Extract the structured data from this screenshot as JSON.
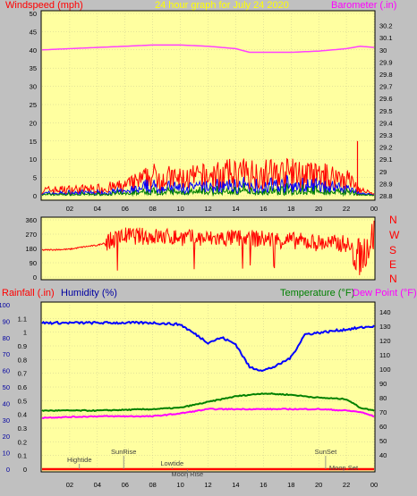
{
  "header": {
    "title": "24 hour graph for   July 24 2020",
    "left_label": "Windspeed (mph)",
    "right_label": "Barometer (.in)"
  },
  "direction_labels": [
    "N",
    "W",
    "S",
    "E",
    "N"
  ],
  "bottom_header": {
    "rain_label": "Rainfall (.in)",
    "humidity_label": "Humidity (%)",
    "temperature_label": "Temperature (°F)",
    "dewpoint_label": "Dew Point (°F)"
  },
  "events": [
    {
      "label": "Hightide",
      "x": 2.7
    },
    {
      "label": "SunRise",
      "x": 5.9
    },
    {
      "label": "Lowtide",
      "x": 9.4
    },
    {
      "label": "Moon Rise",
      "x": 10.5
    },
    {
      "label": "SunSet",
      "x": 20.5
    },
    {
      "label": "Moon Set",
      "x": 21.8
    }
  ],
  "chart_data": [
    {
      "type": "line",
      "name": "windspeed-barometer",
      "x_ticks": [
        "02",
        "04",
        "06",
        "08",
        "10",
        "12",
        "14",
        "16",
        "18",
        "20",
        "22",
        "00"
      ],
      "x_range": [
        0,
        24
      ],
      "ylim_left": [
        0,
        50
      ],
      "yticks_left": [
        0,
        5,
        10,
        15,
        20,
        25,
        30,
        35,
        40,
        45,
        50
      ],
      "ylim_right": [
        28.8,
        30.3
      ],
      "yticks_right": [
        "28.8",
        "28.9",
        "29",
        "29.1",
        "29.2",
        "29.3",
        "29.4",
        "29.5",
        "29.6",
        "29.7",
        "29.8",
        "29.9",
        "30",
        "30.1",
        "30.2"
      ],
      "barometer": {
        "x": [
          0,
          2,
          4,
          6,
          8,
          10,
          12,
          14,
          15,
          16,
          18,
          20,
          22,
          23,
          24
        ],
        "y": [
          30.0,
          30.01,
          30.02,
          30.03,
          30.04,
          30.04,
          30.03,
          30.01,
          29.98,
          29.98,
          29.98,
          29.99,
          30.01,
          30.03,
          30.02
        ]
      },
      "gust_profile": {
        "x": [
          0,
          4,
          6,
          8,
          10,
          12,
          14,
          16,
          18,
          20,
          22,
          23,
          24
        ],
        "y": [
          2,
          2.5,
          3.5,
          7,
          6,
          7,
          8,
          8,
          8,
          7,
          6.5,
          2,
          0.5
        ]
      },
      "wind_peak": {
        "x": 22.8,
        "y": 15
      }
    },
    {
      "type": "line",
      "name": "wind-direction",
      "ylim": [
        0,
        360
      ],
      "yticks": [
        0,
        90,
        180,
        270,
        360
      ],
      "x_range": [
        0,
        24
      ],
      "profile": {
        "x": [
          0,
          2,
          3,
          4,
          5,
          6,
          8,
          10,
          12,
          14,
          16,
          18,
          20,
          22,
          23,
          24
        ],
        "y": [
          170,
          175,
          190,
          200,
          230,
          260,
          255,
          250,
          240,
          245,
          240,
          230,
          215,
          210,
          120,
          270
        ]
      }
    },
    {
      "type": "line",
      "name": "rain-humidity-temperature-dewpoint",
      "x_ticks": [
        "02",
        "04",
        "06",
        "08",
        "10",
        "12",
        "14",
        "16",
        "18",
        "20",
        "22",
        "00"
      ],
      "x_range": [
        0,
        24
      ],
      "ylim_rain": [
        0,
        1.2
      ],
      "yticks_rain": [
        "0",
        "0.1",
        "0.2",
        "0.3",
        "0.4",
        "0.5",
        "0.6",
        "0.7",
        "0.8",
        "0.9",
        "1",
        "1.1"
      ],
      "ylim_humidity": [
        0,
        100
      ],
      "yticks_humidity": [
        0,
        10,
        20,
        30,
        40,
        50,
        60,
        70,
        80,
        90,
        100
      ],
      "ylim_temperature": [
        30,
        145
      ],
      "yticks_temperature": [
        40,
        50,
        60,
        70,
        80,
        90,
        100,
        110,
        120,
        130,
        140
      ],
      "series": [
        {
          "name": "Humidity",
          "color": "#0000ff",
          "axis": "humidity",
          "x": [
            0,
            4,
            8,
            10,
            12,
            13,
            14,
            15,
            16,
            17,
            18,
            19,
            20,
            21,
            22,
            23,
            24
          ],
          "y": [
            89,
            89,
            89,
            88,
            77,
            80,
            76,
            62,
            60,
            63,
            68,
            82,
            83,
            84,
            85,
            86,
            87
          ]
        },
        {
          "name": "Temperature",
          "color": "#008000",
          "axis": "temperature",
          "x": [
            0,
            4,
            8,
            10,
            12,
            14,
            15,
            16,
            18,
            20,
            22,
            23,
            24
          ],
          "y": [
            71,
            71,
            72,
            73,
            77,
            81,
            82,
            83,
            82,
            80,
            79,
            73,
            71
          ]
        },
        {
          "name": "Dew Point",
          "color": "#ff00ff",
          "axis": "temperature",
          "x": [
            0,
            4,
            8,
            10,
            12,
            14,
            16,
            18,
            20,
            22,
            23,
            24
          ],
          "y": [
            66,
            67,
            67,
            69,
            72,
            72,
            72,
            72,
            72,
            71,
            70,
            67
          ]
        },
        {
          "name": "Rainfall",
          "color": "#ff0000",
          "axis": "rain",
          "x": [
            0,
            24
          ],
          "y": [
            0,
            0
          ]
        }
      ]
    }
  ],
  "colors": {
    "background": "#ffffa0",
    "frame": "#c0c0c0",
    "wind_gust": "#ff0000",
    "wind_avg": "#0000ff",
    "wind_min": "#008000",
    "barometer": "#ff40ff",
    "direction": "#ff0000",
    "title": "#ffff00",
    "axis_red": "#ff0000",
    "axis_blue": "#0000a0",
    "axis_green": "#008000",
    "axis_magenta": "#ff00ff"
  }
}
